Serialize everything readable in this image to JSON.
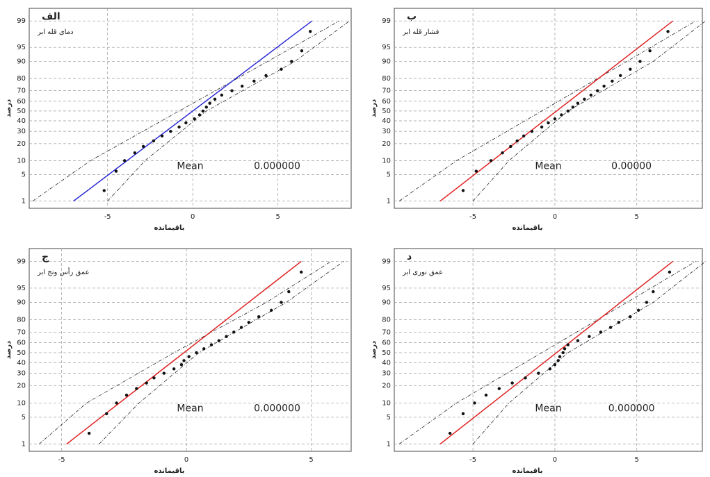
{
  "chart_data": [
    {
      "type": "probability",
      "title": "الف",
      "subtitle": "دمای قله ابر",
      "xlabel": "باقیمانده",
      "ylabel": "درصد",
      "annotations": [
        "Mean",
        "0.000000"
      ],
      "xlim": [
        -9.6,
        9.3
      ],
      "ylim": [
        0.6,
        99.6
      ],
      "xticks": [
        -5,
        0,
        5
      ],
      "yticks": [
        1,
        5,
        10,
        20,
        30,
        40,
        50,
        60,
        70,
        80,
        90,
        95,
        99
      ],
      "grid": true,
      "points": {
        "color": "#111111",
        "x": [
          -5.2,
          -4.5,
          -4.0,
          -3.4,
          -2.9,
          -2.3,
          -1.8,
          -1.3,
          -0.8,
          -0.4,
          0.1,
          0.4,
          0.6,
          0.8,
          1.0,
          1.3,
          1.7,
          2.3,
          2.9,
          3.6,
          4.3,
          5.2,
          5.8,
          6.4,
          6.9
        ],
        "y": [
          2,
          6,
          10,
          14,
          18,
          22,
          26,
          30,
          34,
          38,
          42,
          46,
          50,
          54,
          58,
          62,
          66,
          70,
          74,
          78,
          82,
          86,
          90,
          94,
          98
        ]
      },
      "fit": {
        "color": "#2a2ad6",
        "x": [
          -7,
          7
        ],
        "y": [
          1,
          99
        ]
      },
      "bands": [
        {
          "color": "#222222",
          "x": [
            -9.4,
            -6,
            -0.8,
            4.4,
            8.6
          ],
          "y": [
            1,
            10,
            50,
            90,
            99
          ]
        },
        {
          "color": "#222222",
          "x": [
            -5,
            -2.8,
            0.8,
            6,
            9.2
          ],
          "y": [
            1,
            10,
            50,
            90,
            99
          ]
        }
      ]
    },
    {
      "type": "probability",
      "title": "ب",
      "subtitle": "فشار قله ابر",
      "xlabel": "باقیمانده",
      "ylabel": "درصد",
      "annotations": [
        "Mean",
        "0.00000"
      ],
      "xlim": [
        -9.8,
        9.0
      ],
      "ylim": [
        0.6,
        99.6
      ],
      "xticks": [
        -5,
        0,
        5
      ],
      "yticks": [
        1,
        5,
        10,
        20,
        30,
        40,
        50,
        60,
        70,
        80,
        90,
        95,
        99
      ],
      "grid": true,
      "points": {
        "color": "#111111",
        "x": [
          -5.6,
          -4.8,
          -3.9,
          -3.2,
          -2.7,
          -2.3,
          -1.9,
          -1.4,
          -0.8,
          -0.4,
          0.0,
          0.4,
          0.8,
          1.1,
          1.4,
          1.8,
          2.2,
          2.6,
          3.0,
          3.5,
          4.0,
          4.6,
          5.2,
          5.8,
          6.9
        ],
        "y": [
          2,
          6,
          10,
          14,
          18,
          22,
          26,
          30,
          34,
          38,
          42,
          46,
          50,
          54,
          58,
          62,
          66,
          70,
          74,
          78,
          82,
          86,
          90,
          94,
          98
        ]
      },
      "fit": {
        "color": "#e02020",
        "x": [
          -7,
          7.2
        ],
        "y": [
          1,
          99
        ]
      },
      "bands": [
        {
          "color": "#222222",
          "x": [
            -9.5,
            -6,
            -0.8,
            4.4,
            8.6
          ],
          "y": [
            1,
            10,
            50,
            90,
            99
          ]
        },
        {
          "color": "#222222",
          "x": [
            -5,
            -2.8,
            0.8,
            6,
            9.2
          ],
          "y": [
            1,
            10,
            50,
            90,
            99
          ]
        }
      ]
    },
    {
      "type": "probability",
      "title": "ج",
      "subtitle": "عمق رأس ونج ابر",
      "xlabel": "باقیمانده",
      "ylabel": "درصد",
      "annotations": [
        "Mean",
        "0.000000"
      ],
      "xlim": [
        -6.3,
        6.6
      ],
      "ylim": [
        0.6,
        99.6
      ],
      "xticks": [
        -5,
        0,
        5
      ],
      "yticks": [
        1,
        5,
        10,
        20,
        30,
        40,
        50,
        60,
        70,
        80,
        90,
        95,
        99
      ],
      "grid": true,
      "points": {
        "color": "#111111",
        "x": [
          -3.9,
          -3.2,
          -2.8,
          -2.4,
          -2.0,
          -1.6,
          -1.3,
          -0.9,
          -0.5,
          -0.2,
          -0.1,
          0.1,
          0.4,
          0.7,
          1.0,
          1.3,
          1.6,
          1.9,
          2.2,
          2.5,
          2.9,
          3.4,
          3.8,
          4.1,
          4.6
        ],
        "y": [
          2,
          6,
          10,
          14,
          18,
          22,
          26,
          30,
          34,
          38,
          42,
          46,
          50,
          54,
          58,
          62,
          66,
          70,
          74,
          78,
          82,
          86,
          90,
          94,
          98
        ]
      },
      "fit": {
        "color": "#e02020",
        "x": [
          -4.8,
          4.6
        ],
        "y": [
          1,
          99
        ]
      },
      "bands": [
        {
          "color": "#222222",
          "x": [
            -5.9,
            -4,
            -0.5,
            3.2,
            5.8
          ],
          "y": [
            1,
            10,
            50,
            90,
            99
          ]
        },
        {
          "color": "#222222",
          "x": [
            -3.5,
            -1.9,
            0.5,
            4,
            6.3
          ],
          "y": [
            1,
            10,
            50,
            90,
            99
          ]
        }
      ]
    },
    {
      "type": "probability",
      "title": "د",
      "subtitle": "عمق نوری ابر",
      "xlabel": "باقیمانده",
      "ylabel": "درصد",
      "annotations": [
        "Mean",
        "0.000000"
      ],
      "xlim": [
        -9.8,
        9.0
      ],
      "ylim": [
        0.6,
        99.6
      ],
      "xticks": [
        -5,
        0,
        5
      ],
      "yticks": [
        1,
        5,
        10,
        20,
        30,
        40,
        50,
        60,
        70,
        80,
        90,
        95,
        99
      ],
      "grid": true,
      "points": {
        "color": "#111111",
        "x": [
          -6.4,
          -5.6,
          -4.9,
          -4.2,
          -3.4,
          -2.6,
          -1.8,
          -1.0,
          -0.3,
          0.0,
          0.2,
          0.3,
          0.5,
          0.6,
          0.8,
          1.4,
          2.1,
          2.8,
          3.4,
          3.9,
          4.6,
          5.1,
          5.6,
          6.0,
          7.0
        ],
        "y": [
          2,
          6,
          10,
          14,
          18,
          22,
          26,
          30,
          34,
          38,
          42,
          46,
          50,
          54,
          58,
          62,
          66,
          70,
          74,
          78,
          82,
          86,
          90,
          94,
          98
        ]
      },
      "fit": {
        "color": "#e02020",
        "x": [
          -7,
          7.2
        ],
        "y": [
          1,
          99
        ]
      },
      "bands": [
        {
          "color": "#222222",
          "x": [
            -9.5,
            -6,
            -0.8,
            4.4,
            8.6
          ],
          "y": [
            1,
            10,
            50,
            90,
            99
          ]
        },
        {
          "color": "#222222",
          "x": [
            -5,
            -2.8,
            0.8,
            6,
            9.2
          ],
          "y": [
            1,
            10,
            50,
            90,
            99
          ]
        }
      ]
    }
  ]
}
